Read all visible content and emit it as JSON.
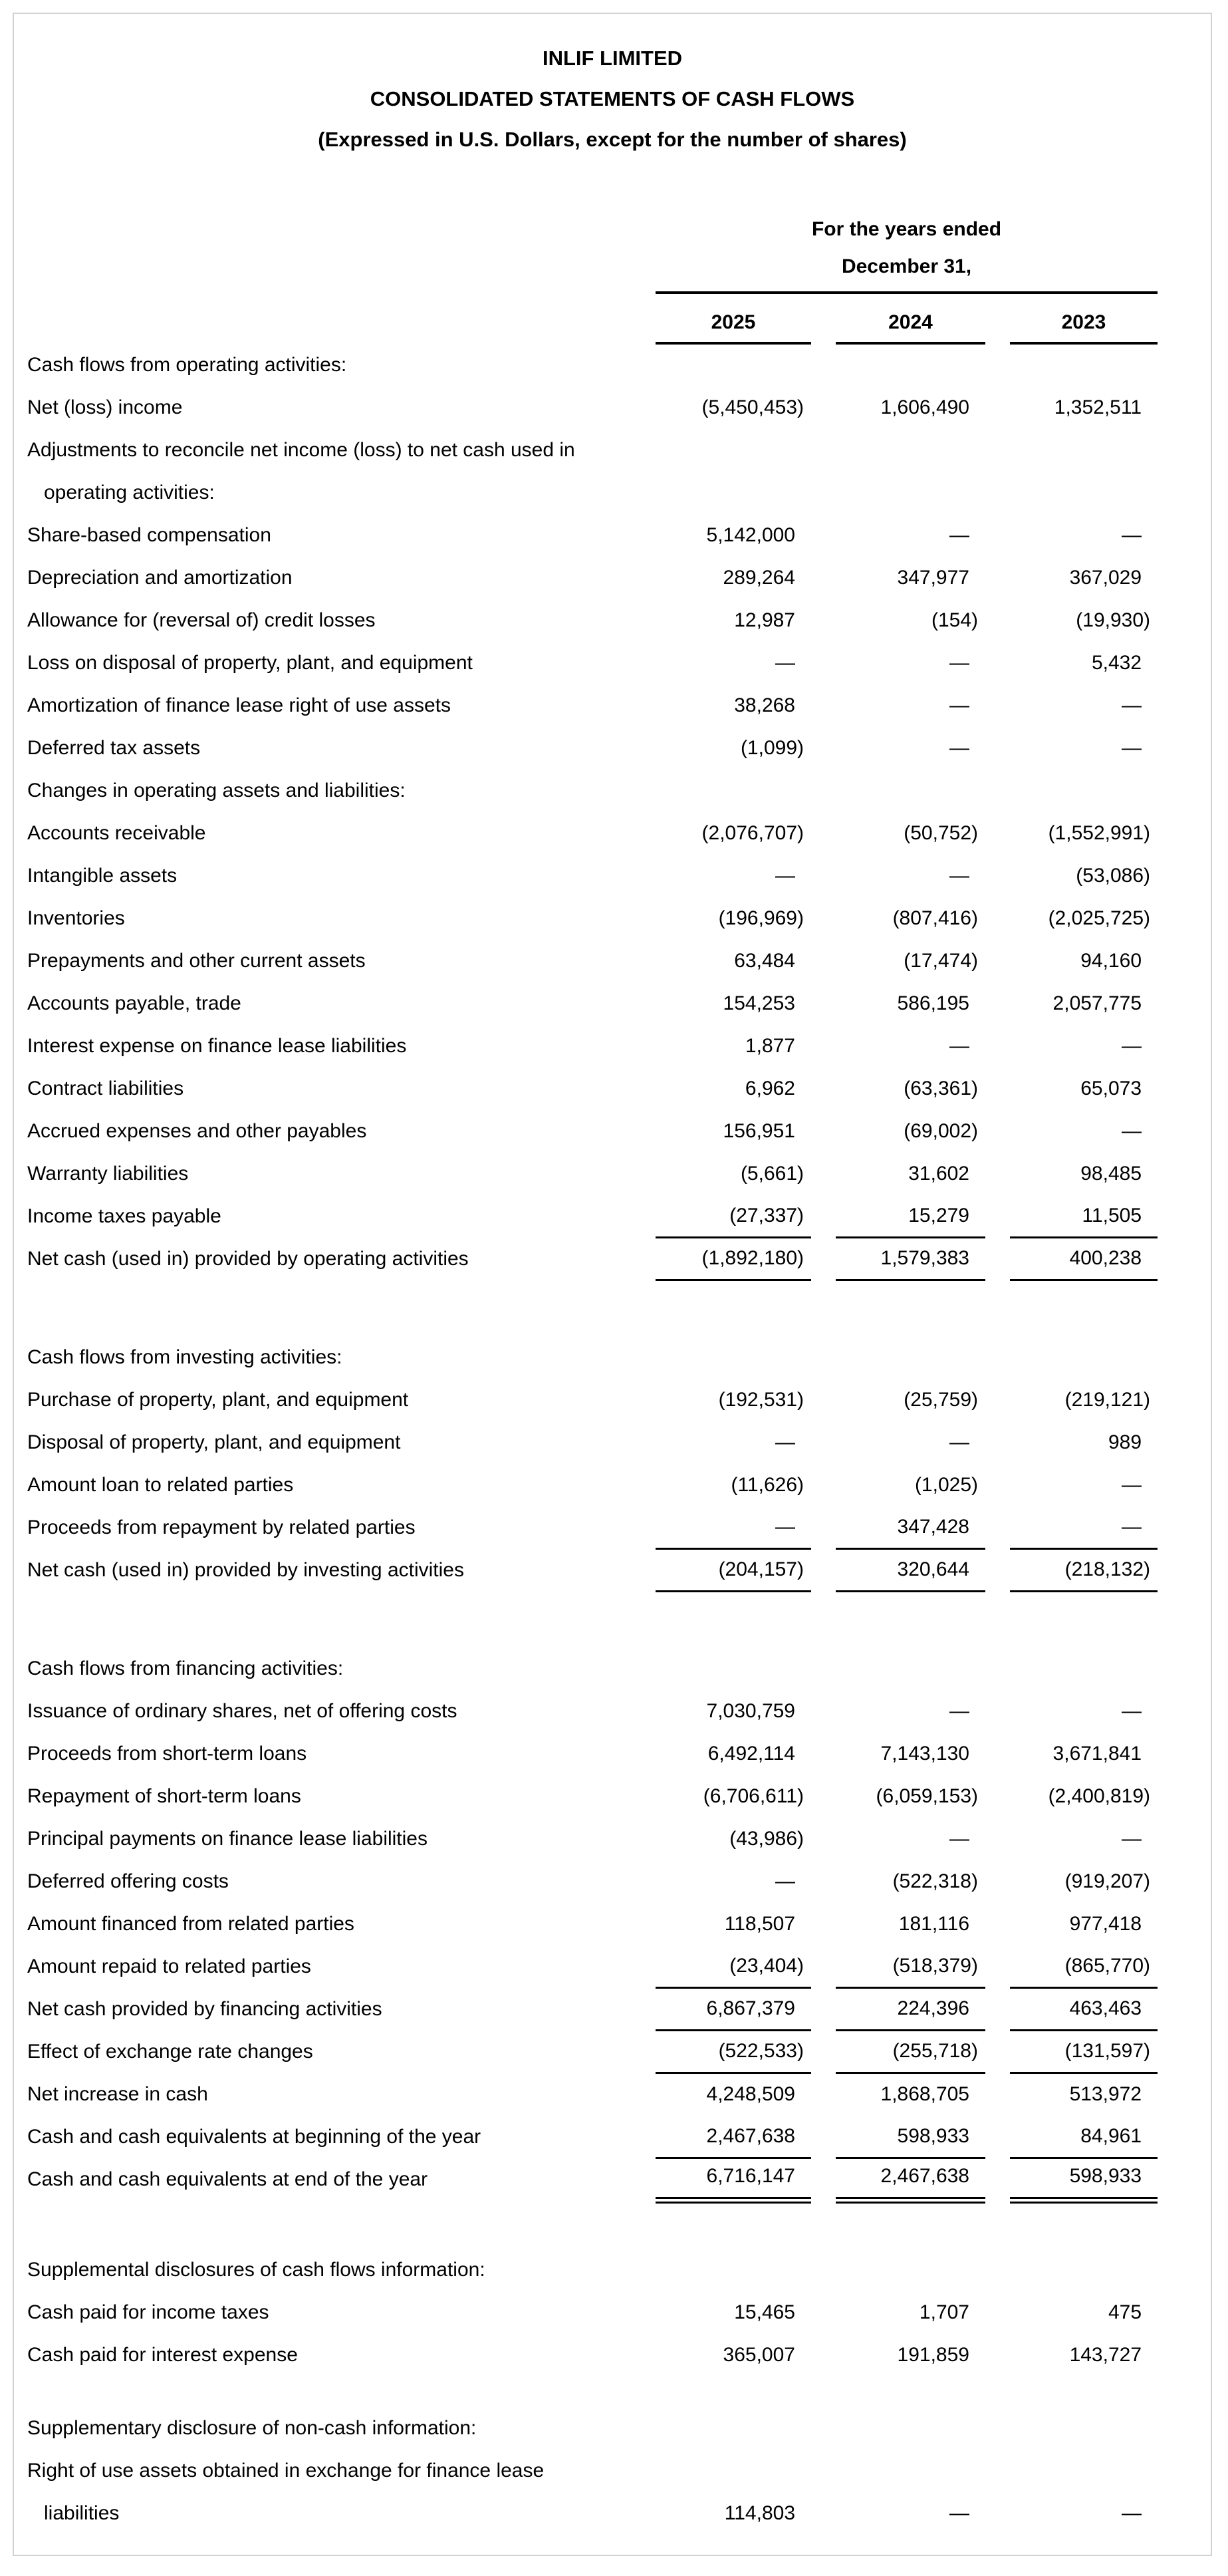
{
  "title": {
    "company": "INLIF LIMITED",
    "statement": "CONSOLIDATED STATEMENTS OF CASH FLOWS",
    "note": "(Expressed in U.S. Dollars, except for the number of shares)"
  },
  "table": {
    "period_header": {
      "line1": "For the years ended",
      "line2": "December 31,"
    },
    "years": [
      "2025",
      "2024",
      "2023"
    ],
    "rows": [
      {
        "label": "Cash flows from operating activities:"
      },
      {
        "label": "Net (loss) income",
        "values": [
          "(5,450,453)",
          "1,606,490",
          "1,352,511"
        ]
      },
      {
        "label": "Adjustments to reconcile net income (loss) to net cash used in"
      },
      {
        "label": "operating activities:",
        "indent": true
      },
      {
        "label": "Share-based compensation",
        "values": [
          "5,142,000",
          "—",
          "—"
        ]
      },
      {
        "label": "Depreciation and amortization",
        "values": [
          "289,264",
          "347,977",
          "367,029"
        ]
      },
      {
        "label": "Allowance for (reversal of) credit losses",
        "values": [
          "12,987",
          "(154)",
          "(19,930)"
        ]
      },
      {
        "label": "Loss on disposal of property, plant, and equipment",
        "values": [
          "—",
          "—",
          "5,432"
        ]
      },
      {
        "label": "Amortization of finance lease right of use assets",
        "values": [
          "38,268",
          "—",
          "—"
        ]
      },
      {
        "label": "Deferred tax assets",
        "values": [
          "(1,099)",
          "—",
          "—"
        ]
      },
      {
        "label": "Changes in operating assets and liabilities:"
      },
      {
        "label": "Accounts receivable",
        "values": [
          "(2,076,707)",
          "(50,752)",
          "(1,552,991)"
        ]
      },
      {
        "label": "Intangible assets",
        "values": [
          "—",
          "—",
          "(53,086)"
        ]
      },
      {
        "label": "Inventories",
        "values": [
          "(196,969)",
          "(807,416)",
          "(2,025,725)"
        ]
      },
      {
        "label": "Prepayments and other current assets",
        "values": [
          "63,484",
          "(17,474)",
          "94,160"
        ]
      },
      {
        "label": "Accounts payable, trade",
        "values": [
          "154,253",
          "586,195",
          "2,057,775"
        ]
      },
      {
        "label": "Interest expense on finance lease liabilities",
        "values": [
          "1,877",
          "—",
          "—"
        ]
      },
      {
        "label": "Contract liabilities",
        "values": [
          "6,962",
          "(63,361)",
          "65,073"
        ]
      },
      {
        "label": "Accrued expenses and other payables",
        "values": [
          "156,951",
          "(69,002)",
          "—"
        ]
      },
      {
        "label": "Warranty liabilities",
        "values": [
          "(5,661)",
          "31,602",
          "98,485"
        ]
      },
      {
        "label": "Income taxes payable",
        "values": [
          "(27,337)",
          "15,279",
          "11,505"
        ],
        "underline": "single"
      },
      {
        "label": "Net cash (used in) provided by operating activities",
        "values": [
          "(1,892,180)",
          "1,579,383",
          "400,238"
        ],
        "underline": "single"
      },
      {
        "spacer": 84
      },
      {
        "label": "Cash flows from investing activities:"
      },
      {
        "label": "Purchase of property, plant, and equipment",
        "values": [
          "(192,531)",
          "(25,759)",
          "(219,121)"
        ]
      },
      {
        "label": "Disposal of property, plant, and equipment",
        "values": [
          "—",
          "—",
          "989"
        ]
      },
      {
        "label": "Amount loan to related parties",
        "values": [
          "(11,626)",
          "(1,025)",
          "—"
        ]
      },
      {
        "label": "Proceeds from repayment by related parties",
        "values": [
          "—",
          "347,428",
          "—"
        ],
        "underline": "single"
      },
      {
        "label": "Net cash (used in) provided by investing activities",
        "values": [
          "(204,157)",
          "320,644",
          "(218,132)"
        ],
        "underline": "single"
      },
      {
        "spacer": 84
      },
      {
        "label": "Cash flows from financing activities:"
      },
      {
        "label": "Issuance of ordinary shares, net of offering costs",
        "values": [
          "7,030,759",
          "—",
          "—"
        ]
      },
      {
        "label": "Proceeds from short-term loans",
        "values": [
          "6,492,114",
          "7,143,130",
          "3,671,841"
        ]
      },
      {
        "label": "Repayment of short-term loans",
        "values": [
          "(6,706,611)",
          "(6,059,153)",
          "(2,400,819)"
        ]
      },
      {
        "label": "Principal payments on finance lease liabilities",
        "values": [
          "(43,986)",
          "—",
          "—"
        ]
      },
      {
        "label": "Deferred offering costs",
        "values": [
          "—",
          "(522,318)",
          "(919,207)"
        ]
      },
      {
        "label": "Amount financed from related parties",
        "values": [
          "118,507",
          "181,116",
          "977,418"
        ]
      },
      {
        "label": "Amount repaid to related parties",
        "values": [
          "(23,404)",
          "(518,379)",
          "(865,770)"
        ],
        "underline": "single"
      },
      {
        "label": "Net cash provided by financing activities",
        "values": [
          "6,867,379",
          "224,396",
          "463,463"
        ],
        "underline": "single"
      },
      {
        "label": "Effect of exchange rate changes",
        "values": [
          "(522,533)",
          "(255,718)",
          "(131,597)"
        ],
        "underline": "single"
      },
      {
        "label": "Net increase in cash",
        "values": [
          "4,248,509",
          "1,868,705",
          "513,972"
        ]
      },
      {
        "label": "Cash and cash equivalents at beginning of the year",
        "values": [
          "2,467,638",
          "598,933",
          "84,961"
        ],
        "underline": "single"
      },
      {
        "label": "Cash and cash equivalents at end of the year",
        "values": [
          "6,716,147",
          "2,467,638",
          "598,933"
        ],
        "underline": "double"
      },
      {
        "spacer": 72
      },
      {
        "label": "Supplemental disclosures of cash flows information:"
      },
      {
        "label": "Cash paid for income taxes",
        "values": [
          "15,465",
          "1,707",
          "475"
        ]
      },
      {
        "label": "Cash paid for interest expense",
        "values": [
          "365,007",
          "191,859",
          "143,727"
        ]
      },
      {
        "spacer": 46
      },
      {
        "label": "Supplementary disclosure of non-cash information:"
      },
      {
        "label": "Right of use assets obtained in exchange for finance lease"
      },
      {
        "label": "liabilities",
        "indent": true,
        "values": [
          "114,803",
          "—",
          "—"
        ]
      }
    ]
  }
}
